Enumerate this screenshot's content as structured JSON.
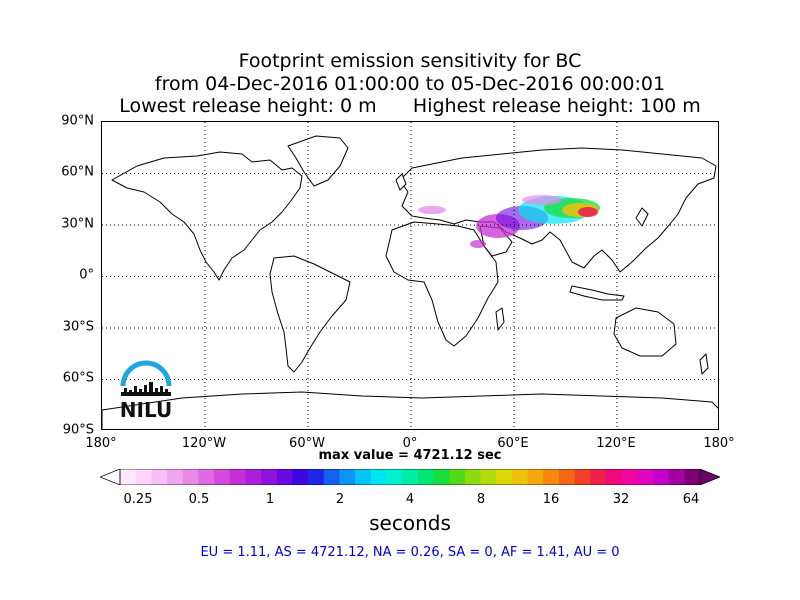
{
  "title": {
    "line1": "Footprint emission sensitivity for BC",
    "line2": "from 04-Dec-2016 01:00:00 to 05-Dec-2016 00:00:01",
    "lowest_release": "Lowest release height: 0 m",
    "highest_release": "Highest release height: 100 m"
  },
  "map": {
    "lat_labels": [
      "90°N",
      "60°N",
      "30°N",
      "0°",
      "30°S",
      "60°S",
      "90°S"
    ],
    "lon_labels": [
      "180°",
      "120°W",
      "60°W",
      "0°",
      "60°E",
      "120°E",
      "180°"
    ],
    "max_value": "max value = 4721.12 sec"
  },
  "colorbar": {
    "ticks": [
      "0.25",
      "0.5",
      "1",
      "2",
      "4",
      "8",
      "16",
      "32",
      "64"
    ],
    "label": "seconds",
    "colors": [
      "#ffe9ff",
      "#fdd5fb",
      "#f8bff6",
      "#f1a6f0",
      "#e98ae9",
      "#df6ae2",
      "#d34bdc",
      "#c52fd6",
      "#ae1fd9",
      "#8f12dd",
      "#6a0ae0",
      "#4006e0",
      "#1e24e8",
      "#1460f0",
      "#0d95f5",
      "#06c4f8",
      "#00e6f0",
      "#00f0d0",
      "#00eda4",
      "#00e674",
      "#19dd3c",
      "#52da1a",
      "#8adb11",
      "#b4dc0a",
      "#dbd806",
      "#f1c20a",
      "#f4a70f",
      "#f58712",
      "#f26614",
      "#f04025",
      "#ee1f4a",
      "#f00a78",
      "#ee08a0",
      "#e006bf",
      "#c402cc",
      "#a4009f",
      "#7d0074"
    ],
    "under_color": "#ffffff",
    "over_color": "#6a0068"
  },
  "regions": "EU = 1.11,  AS = 4721.12,  NA = 0.26,  SA = 0,  AF = 1.41,  AU = 0",
  "logo": {
    "text": "NILU",
    "arc_color": "#1fa5e0"
  }
}
